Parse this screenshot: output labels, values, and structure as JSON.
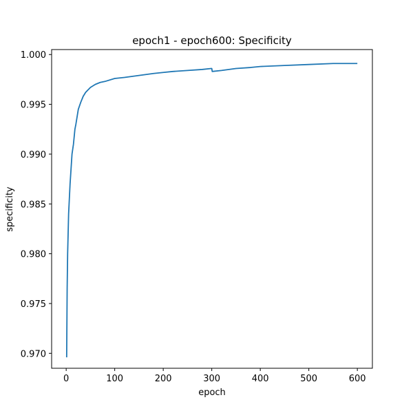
{
  "chart_data": {
    "type": "line",
    "title": "epoch1 - epoch600: Specificity",
    "xlabel": "epoch",
    "ylabel": "specificity",
    "xlim": [
      -30,
      631
    ],
    "ylim": [
      0.9685,
      1.0005
    ],
    "xticks": [
      0,
      100,
      200,
      300,
      400,
      500,
      600
    ],
    "yticks": [
      0.97,
      0.975,
      0.98,
      0.985,
      0.99,
      0.995,
      1.0
    ],
    "ytick_labels": [
      "0.970",
      "0.975",
      "0.980",
      "0.985",
      "0.990",
      "0.995",
      "1.000"
    ],
    "grid": false,
    "legend": "none",
    "color": "#1f77b4",
    "series": [
      {
        "x": [
          1,
          2,
          3,
          4,
          5,
          6,
          8,
          10,
          12,
          15,
          18,
          20,
          25,
          30,
          35,
          40,
          50,
          60,
          70,
          80,
          100,
          120,
          150,
          180,
          200,
          220,
          250,
          280,
          299,
          300,
          301,
          320,
          350,
          380,
          400,
          450,
          500,
          550,
          600
        ],
        "y": [
          0.9696,
          0.9765,
          0.98,
          0.982,
          0.984,
          0.985,
          0.987,
          0.9885,
          0.99,
          0.991,
          0.9925,
          0.993,
          0.9945,
          0.9952,
          0.9958,
          0.9962,
          0.9967,
          0.997,
          0.9972,
          0.9973,
          0.9976,
          0.9977,
          0.9979,
          0.9981,
          0.9982,
          0.9983,
          0.9984,
          0.9985,
          0.9986,
          0.9986,
          0.9983,
          0.9984,
          0.9986,
          0.9987,
          0.9988,
          0.9989,
          0.999,
          0.9991,
          0.9991
        ]
      }
    ]
  }
}
